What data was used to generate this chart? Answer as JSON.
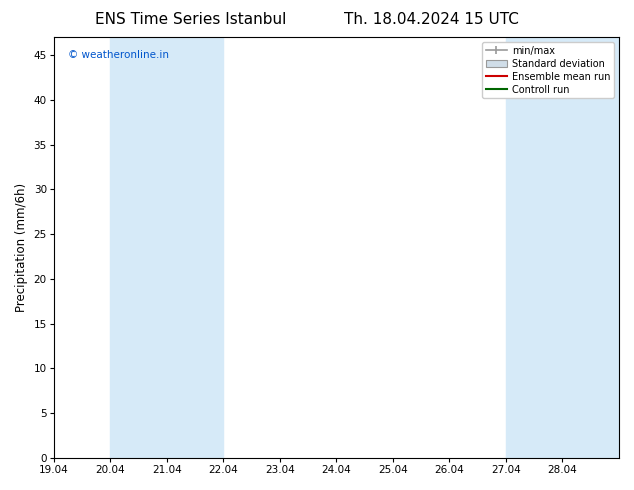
{
  "title": "ENS Time Series Istanbul",
  "title2": "Th. 18.04.2024 15 UTC",
  "ylabel": "Precipitation (mm/6h)",
  "watermark": "© weatheronline.in",
  "watermark_color": "#0055cc",
  "xlim_start": 0,
  "xlim_end": 10,
  "ylim": [
    0,
    47
  ],
  "yticks": [
    0,
    5,
    10,
    15,
    20,
    25,
    30,
    35,
    40,
    45
  ],
  "xtick_labels": [
    "19.04",
    "20.04",
    "21.04",
    "22.04",
    "23.04",
    "24.04",
    "25.04",
    "26.04",
    "27.04",
    "28.04"
  ],
  "shaded_bands": [
    [
      1.0,
      2.0
    ],
    [
      2.0,
      3.0
    ],
    [
      8.0,
      9.0
    ],
    [
      9.0,
      10.0
    ]
  ],
  "shade_color": "#d6eaf8",
  "legend_labels": [
    "min/max",
    "Standard deviation",
    "Ensemble mean run",
    "Controll run"
  ],
  "legend_colors": [
    "#999999",
    "#bbbbbb",
    "#cc0000",
    "#006600"
  ],
  "bg_color": "#ffffff",
  "axes_color": "#000000",
  "title_fontsize": 11,
  "tick_fontsize": 7.5,
  "ylabel_fontsize": 8.5
}
